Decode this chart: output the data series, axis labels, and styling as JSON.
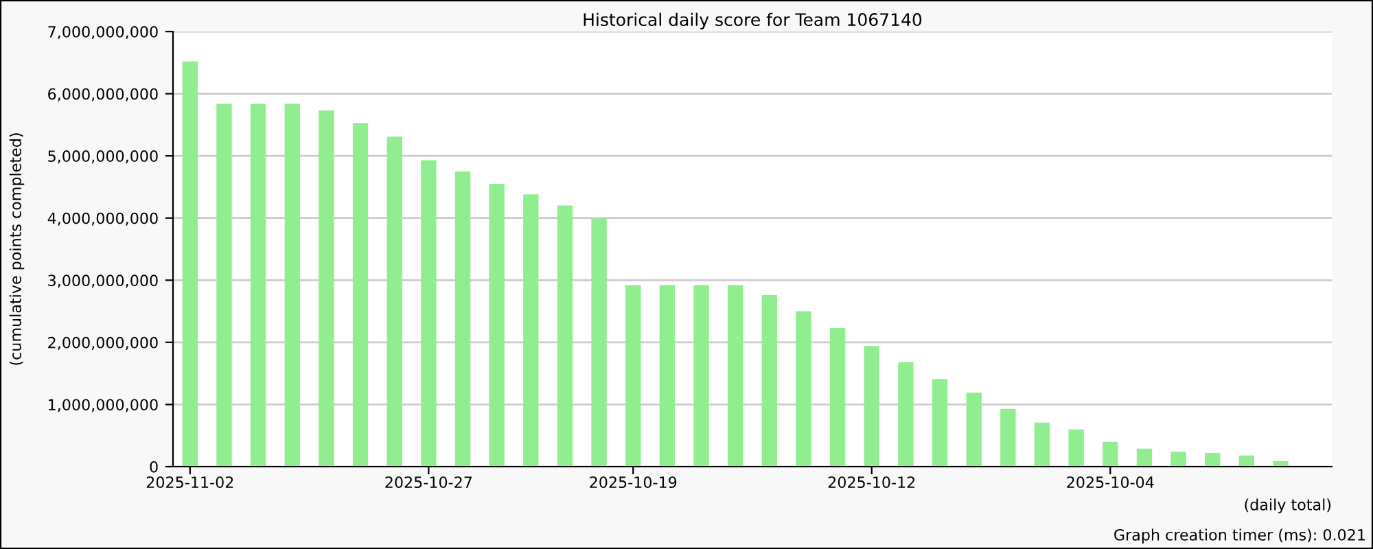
{
  "chart_data": {
    "type": "bar",
    "title": "Historical daily score for Team 1067140",
    "xlabel": "(daily total)",
    "ylabel": "(cumulative points completed)",
    "categories": [
      "2025-11-02",
      null,
      null,
      null,
      null,
      null,
      null,
      "2025-10-27",
      null,
      null,
      null,
      null,
      null,
      "2025-10-19",
      null,
      null,
      null,
      null,
      null,
      null,
      "2025-10-12",
      null,
      null,
      null,
      null,
      null,
      null,
      "2025-10-04",
      null,
      null,
      null,
      null,
      null
    ],
    "values": [
      6520000000,
      5840000000,
      5840000000,
      5840000000,
      5730000000,
      5530000000,
      5310000000,
      4930000000,
      4750000000,
      4550000000,
      4380000000,
      4200000000,
      3990000000,
      2920000000,
      2920000000,
      2920000000,
      2920000000,
      2760000000,
      2500000000,
      2230000000,
      1940000000,
      1680000000,
      1410000000,
      1190000000,
      930000000,
      710000000,
      600000000,
      400000000,
      290000000,
      240000000,
      220000000,
      180000000,
      90000000
    ],
    "color": "#90ee90",
    "ylim": [
      0,
      7000000000
    ],
    "yticks": [
      {
        "value": 0,
        "label": "0"
      },
      {
        "value": 1000000000,
        "label": "1,000,000,000"
      },
      {
        "value": 2000000000,
        "label": "2,000,000,000"
      },
      {
        "value": 3000000000,
        "label": "3,000,000,000"
      },
      {
        "value": 4000000000,
        "label": "4,000,000,000"
      },
      {
        "value": 5000000000,
        "label": "5,000,000,000"
      },
      {
        "value": 6000000000,
        "label": "6,000,000,000"
      },
      {
        "value": 7000000000,
        "label": "7,000,000,000"
      }
    ],
    "grid": "y",
    "annotations": [
      "Graph creation timer (ms): 0.021"
    ]
  }
}
